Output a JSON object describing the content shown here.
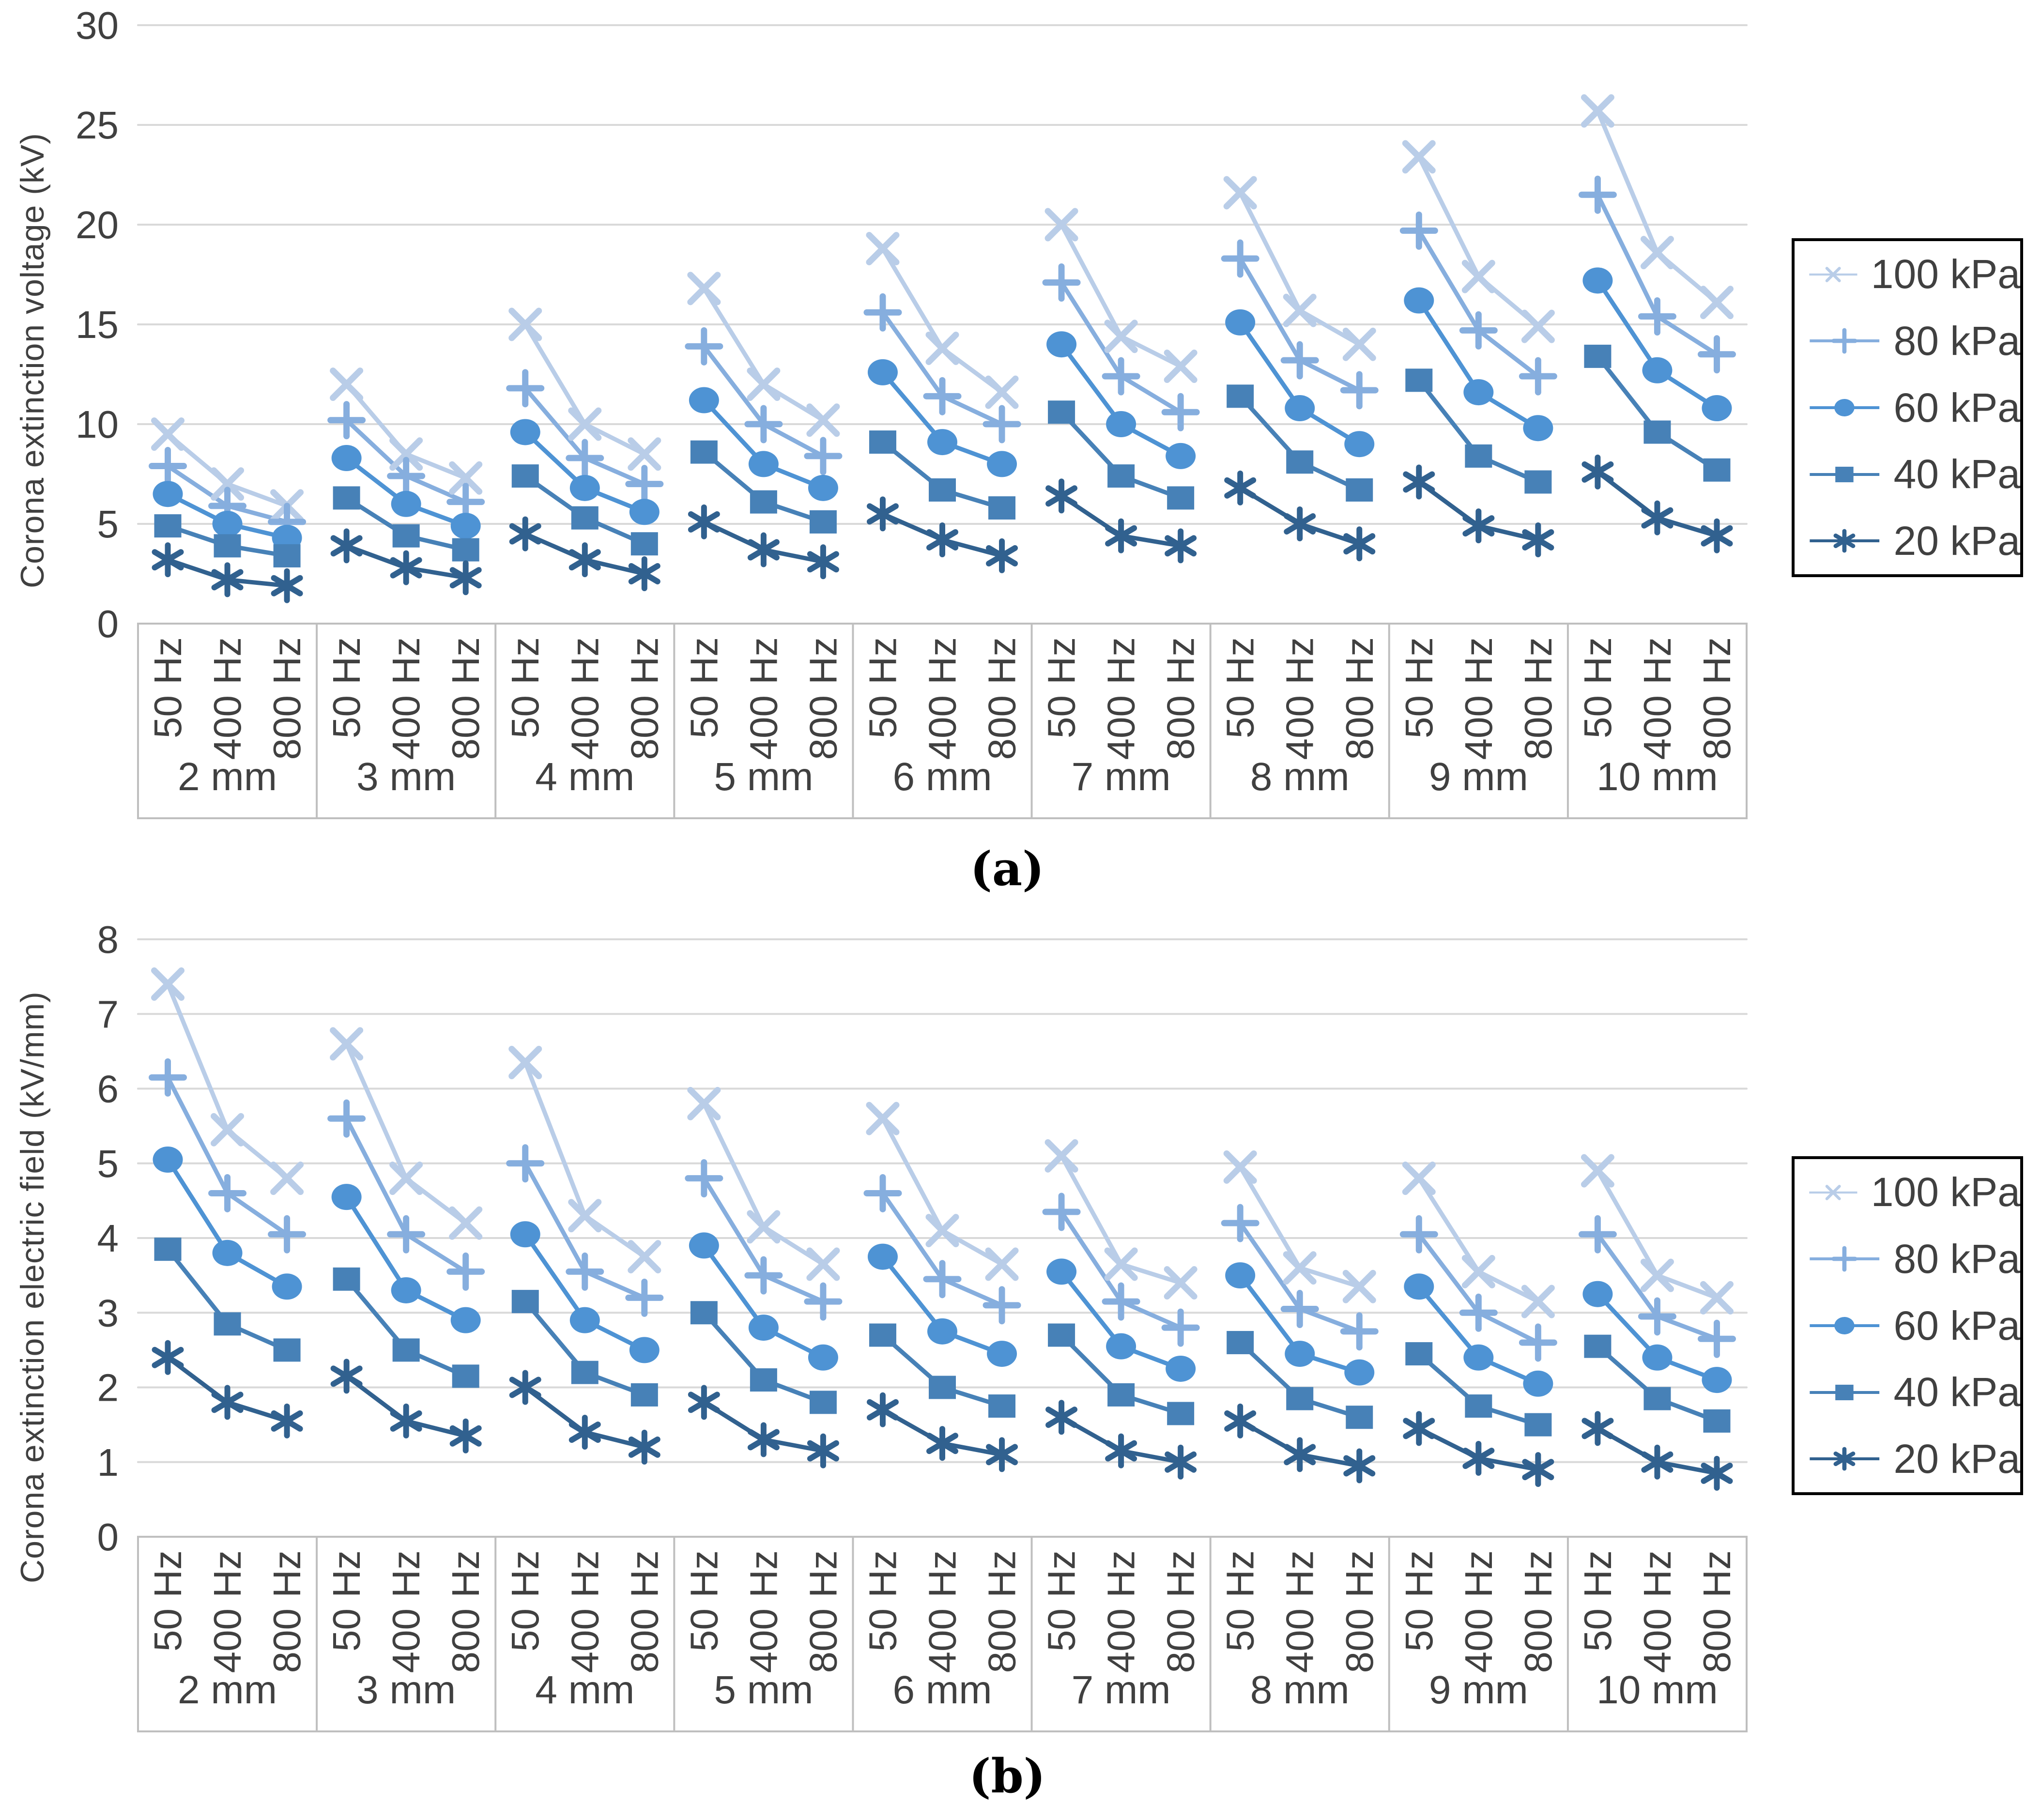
{
  "captions": {
    "a": "(a)",
    "b": "(b)"
  },
  "legend": {
    "items": [
      {
        "label": "100 kPa",
        "marker": "x",
        "color": "#b9cde8"
      },
      {
        "label": "80 kPa",
        "marker": "plus",
        "color": "#86aede"
      },
      {
        "label": "60 kPa",
        "marker": "circle",
        "color": "#4e93d4"
      },
      {
        "label": "40 kPa",
        "marker": "square",
        "color": "#4781b7"
      },
      {
        "label": "20 kPa",
        "marker": "asterisk",
        "color": "#31618f"
      }
    ]
  },
  "chart_data": [
    {
      "type": "line",
      "title": "",
      "ylabel": "Corona extinction voltage (kV)",
      "ylim": [
        0,
        30
      ],
      "ytick_step": 5,
      "yticks": [
        "0",
        "5",
        "10",
        "15",
        "20",
        "25",
        "30"
      ],
      "grid": true,
      "legend_position": "right",
      "categories_groups": [
        "2 mm",
        "3 mm",
        "4 mm",
        "5 mm",
        "6 mm",
        "7 mm",
        "8 mm",
        "9 mm",
        "10 mm"
      ],
      "categories_sub": [
        "50 Hz",
        "400 Hz",
        "800 Hz"
      ],
      "series": [
        {
          "name": "100 kPa",
          "marker": "x",
          "color": "#b9cde8",
          "values": [
            [
              9.5,
              7.0,
              5.9
            ],
            [
              12.0,
              8.5,
              7.3
            ],
            [
              15.0,
              10.0,
              8.5
            ],
            [
              16.8,
              12.0,
              10.2
            ],
            [
              18.8,
              13.8,
              11.6
            ],
            [
              20.0,
              14.4,
              12.9
            ],
            [
              21.6,
              15.7,
              14.0
            ],
            [
              23.4,
              17.4,
              14.9
            ],
            [
              25.7,
              18.6,
              16.1
            ]
          ]
        },
        {
          "name": "80 kPa",
          "marker": "plus",
          "color": "#86aede",
          "values": [
            [
              7.9,
              5.9,
              5.1
            ],
            [
              10.2,
              7.4,
              6.1
            ],
            [
              11.8,
              8.3,
              7.0
            ],
            [
              13.9,
              10.0,
              8.4
            ],
            [
              15.6,
              11.4,
              10.0
            ],
            [
              17.1,
              12.4,
              10.6
            ],
            [
              18.3,
              13.2,
              11.7
            ],
            [
              19.7,
              14.7,
              12.4
            ],
            [
              21.5,
              15.4,
              13.5
            ]
          ]
        },
        {
          "name": "60 kPa",
          "marker": "circle",
          "color": "#4e93d4",
          "values": [
            [
              6.5,
              5.0,
              4.3
            ],
            [
              8.3,
              6.0,
              4.9
            ],
            [
              9.6,
              6.8,
              5.6
            ],
            [
              11.2,
              8.0,
              6.8
            ],
            [
              12.6,
              9.1,
              8.0
            ],
            [
              14.0,
              10.0,
              8.4
            ],
            [
              15.1,
              10.8,
              9.0
            ],
            [
              16.2,
              11.6,
              9.8
            ],
            [
              17.2,
              12.7,
              10.8
            ]
          ]
        },
        {
          "name": "40 kPa",
          "marker": "square",
          "color": "#4781b7",
          "values": [
            [
              4.9,
              3.9,
              3.4
            ],
            [
              6.3,
              4.4,
              3.7
            ],
            [
              7.4,
              5.3,
              4.0
            ],
            [
              8.6,
              6.1,
              5.1
            ],
            [
              9.1,
              6.7,
              5.8
            ],
            [
              10.6,
              7.4,
              6.3
            ],
            [
              11.4,
              8.1,
              6.7
            ],
            [
              12.2,
              8.4,
              7.1
            ],
            [
              13.4,
              9.6,
              7.7
            ]
          ]
        },
        {
          "name": "20 kPa",
          "marker": "asterisk",
          "color": "#31618f",
          "values": [
            [
              3.2,
              2.2,
              1.9
            ],
            [
              3.9,
              2.8,
              2.3
            ],
            [
              4.5,
              3.2,
              2.5
            ],
            [
              5.1,
              3.7,
              3.1
            ],
            [
              5.5,
              4.2,
              3.4
            ],
            [
              6.4,
              4.4,
              3.9
            ],
            [
              6.8,
              5.0,
              4.0
            ],
            [
              7.1,
              4.9,
              4.2
            ],
            [
              7.6,
              5.3,
              4.4
            ]
          ]
        }
      ]
    },
    {
      "type": "line",
      "title": "",
      "ylabel": "Corona extinction electric field (kV/mm)",
      "ylim": [
        0,
        8
      ],
      "ytick_step": 1,
      "yticks": [
        "0",
        "1",
        "2",
        "3",
        "4",
        "5",
        "6",
        "7",
        "8"
      ],
      "grid": true,
      "legend_position": "right",
      "categories_groups": [
        "2 mm",
        "3 mm",
        "4 mm",
        "5 mm",
        "6 mm",
        "7 mm",
        "8 mm",
        "9 mm",
        "10 mm"
      ],
      "categories_sub": [
        "50 Hz",
        "400 Hz",
        "800 Hz"
      ],
      "series": [
        {
          "name": "100 kPa",
          "marker": "x",
          "color": "#b9cde8",
          "values": [
            [
              7.4,
              5.45,
              4.8
            ],
            [
              6.6,
              4.8,
              4.2
            ],
            [
              6.35,
              4.3,
              3.75
            ],
            [
              5.8,
              4.15,
              3.65
            ],
            [
              5.6,
              4.1,
              3.65
            ],
            [
              5.1,
              3.65,
              3.4
            ],
            [
              4.95,
              3.6,
              3.35
            ],
            [
              4.8,
              3.55,
              3.15
            ],
            [
              4.9,
              3.5,
              3.2
            ]
          ]
        },
        {
          "name": "80 kPa",
          "marker": "plus",
          "color": "#86aede",
          "values": [
            [
              6.15,
              4.6,
              4.05
            ],
            [
              5.6,
              4.05,
              3.55
            ],
            [
              5.0,
              3.55,
              3.2
            ],
            [
              4.8,
              3.5,
              3.15
            ],
            [
              4.6,
              3.45,
              3.1
            ],
            [
              4.35,
              3.15,
              2.8
            ],
            [
              4.2,
              3.05,
              2.75
            ],
            [
              4.05,
              3.0,
              2.6
            ],
            [
              4.05,
              2.95,
              2.65
            ]
          ]
        },
        {
          "name": "60 kPa",
          "marker": "circle",
          "color": "#4e93d4",
          "values": [
            [
              5.05,
              3.8,
              3.35
            ],
            [
              4.55,
              3.3,
              2.9
            ],
            [
              4.05,
              2.9,
              2.5
            ],
            [
              3.9,
              2.8,
              2.4
            ],
            [
              3.75,
              2.75,
              2.45
            ],
            [
              3.55,
              2.55,
              2.25
            ],
            [
              3.5,
              2.45,
              2.2
            ],
            [
              3.35,
              2.4,
              2.05
            ],
            [
              3.25,
              2.4,
              2.1
            ]
          ]
        },
        {
          "name": "40 kPa",
          "marker": "square",
          "color": "#4781b7",
          "values": [
            [
              3.85,
              2.85,
              2.5
            ],
            [
              3.45,
              2.5,
              2.15
            ],
            [
              3.15,
              2.2,
              1.9
            ],
            [
              3.0,
              2.1,
              1.8
            ],
            [
              2.7,
              2.0,
              1.75
            ],
            [
              2.7,
              1.9,
              1.65
            ],
            [
              2.6,
              1.85,
              1.6
            ],
            [
              2.45,
              1.75,
              1.5
            ],
            [
              2.55,
              1.85,
              1.55
            ]
          ]
        },
        {
          "name": "20 kPa",
          "marker": "asterisk",
          "color": "#31618f",
          "values": [
            [
              2.4,
              1.8,
              1.55
            ],
            [
              2.15,
              1.55,
              1.35
            ],
            [
              2.0,
              1.4,
              1.2
            ],
            [
              1.8,
              1.3,
              1.15
            ],
            [
              1.7,
              1.25,
              1.1
            ],
            [
              1.6,
              1.15,
              1.0
            ],
            [
              1.55,
              1.1,
              0.95
            ],
            [
              1.45,
              1.05,
              0.9
            ],
            [
              1.45,
              1.0,
              0.85
            ]
          ]
        }
      ]
    }
  ],
  "style": {
    "gridline_color": "#d9d9d9",
    "band_border_color": "#bfbfbf",
    "text_color": "#404040"
  }
}
